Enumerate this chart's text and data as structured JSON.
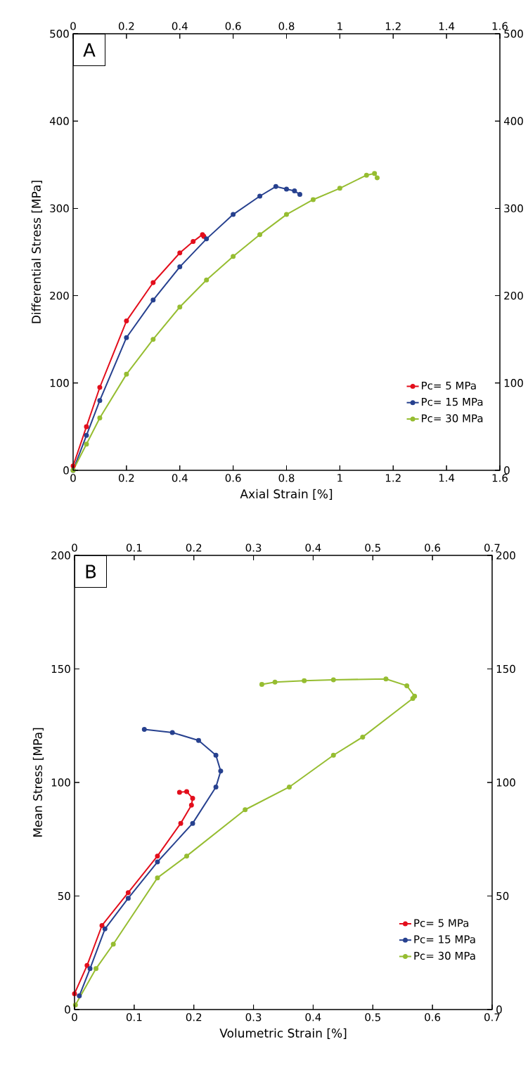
{
  "chart_data": [
    {
      "type": "line",
      "xlabel": "Axial Strain [%]",
      "ylabel": "Differential Stress [MPa]",
      "annotations": [
        "A"
      ],
      "marker": "circle",
      "line_style": "solid",
      "legend": "bottom right",
      "xlim": [
        0,
        1.6
      ],
      "xticks": [
        0,
        0.2,
        0.4,
        0.6,
        0.8,
        1,
        1.2,
        1.4,
        1.6
      ],
      "ylim": [
        0,
        500
      ],
      "yticks": [
        0,
        100,
        200,
        300,
        400,
        500
      ],
      "x2lim": [
        0,
        1.6
      ],
      "x2ticks": [
        0,
        0.2,
        0.4,
        0.6,
        0.8,
        1,
        1.2,
        1.4,
        1.6
      ],
      "y2lim": [
        0,
        500
      ],
      "y2ticks": [
        0,
        100,
        200,
        300,
        400,
        500
      ],
      "series": [
        {
          "name": "Pc= 5 MPa",
          "color": "#e30e1c",
          "x": [
            0,
            0.05,
            0.1,
            0.2,
            0.3,
            0.4,
            0.45,
            0.485,
            0.49
          ],
          "values": [
            5,
            50,
            95,
            171,
            215,
            249,
            262,
            270,
            268
          ]
        },
        {
          "name": "Pc= 15 MPa",
          "color": "#27418f",
          "x": [
            0,
            0.05,
            0.1,
            0.2,
            0.3,
            0.4,
            0.5,
            0.6,
            0.7,
            0.76,
            0.8,
            0.83,
            0.85
          ],
          "values": [
            0,
            40,
            80,
            152,
            195,
            233,
            265,
            293,
            314,
            325,
            322,
            320,
            316
          ]
        },
        {
          "name": "Pc= 30 MPa",
          "color": "#96bd31",
          "x": [
            0,
            0.05,
            0.1,
            0.2,
            0.3,
            0.4,
            0.5,
            0.6,
            0.7,
            0.8,
            0.9,
            1.0,
            1.1,
            1.13,
            1.14
          ],
          "values": [
            0,
            30,
            60,
            110,
            150,
            187,
            218,
            245,
            270,
            293,
            310,
            323,
            338,
            340,
            335
          ]
        }
      ]
    },
    {
      "type": "line",
      "xlabel": "Volumetric Strain [%]",
      "ylabel": "Mean Stress [MPa]",
      "annotations": [
        "B"
      ],
      "marker": "circle",
      "line_style": "solid",
      "legend": "bottom right",
      "xlim": [
        0,
        0.7
      ],
      "xticks": [
        0,
        0.1,
        0.2,
        0.3,
        0.4,
        0.5,
        0.6,
        0.7
      ],
      "ylim": [
        0,
        200
      ],
      "yticks": [
        0,
        50,
        100,
        150,
        200
      ],
      "x2lim": [
        0,
        0.7
      ],
      "x2ticks": [
        0,
        0.1,
        0.2,
        0.3,
        0.4,
        0.5,
        0.6,
        0.7
      ],
      "y2lim": [
        0,
        200
      ],
      "y2ticks": [
        0,
        50,
        100,
        150,
        200
      ],
      "series": [
        {
          "name": "Pc= 5 MPa",
          "color": "#e30e1c",
          "x": [
            0,
            0.021,
            0.046,
            0.09,
            0.139,
            0.178,
            0.196,
            0.198,
            0.188,
            0.176
          ],
          "values": [
            7,
            19.4,
            37,
            51.5,
            67.6,
            82,
            90,
            93,
            96,
            95.7
          ]
        },
        {
          "name": "Pc= 15 MPa",
          "color": "#27418f",
          "x": [
            0.008,
            0.026,
            0.051,
            0.09,
            0.139,
            0.198,
            0.237,
            0.245,
            0.237,
            0.208,
            0.164,
            0.117
          ],
          "values": [
            6,
            18,
            35.5,
            49,
            65,
            82,
            98,
            105,
            112,
            118.5,
            122,
            123.4
          ]
        },
        {
          "name": "Pc= 30 MPa",
          "color": "#96bd31",
          "x": [
            0.0015,
            0.036,
            0.065,
            0.139,
            0.188,
            0.286,
            0.36,
            0.434,
            0.483,
            0.567,
            0.57,
            0.557,
            0.522,
            0.434,
            0.385,
            0.336,
            0.314
          ],
          "values": [
            2,
            18,
            28.8,
            58,
            67.6,
            88,
            98,
            112,
            120,
            137,
            138,
            142.6,
            145.6,
            145.2,
            144.8,
            144.2,
            143.2
          ]
        }
      ]
    }
  ]
}
